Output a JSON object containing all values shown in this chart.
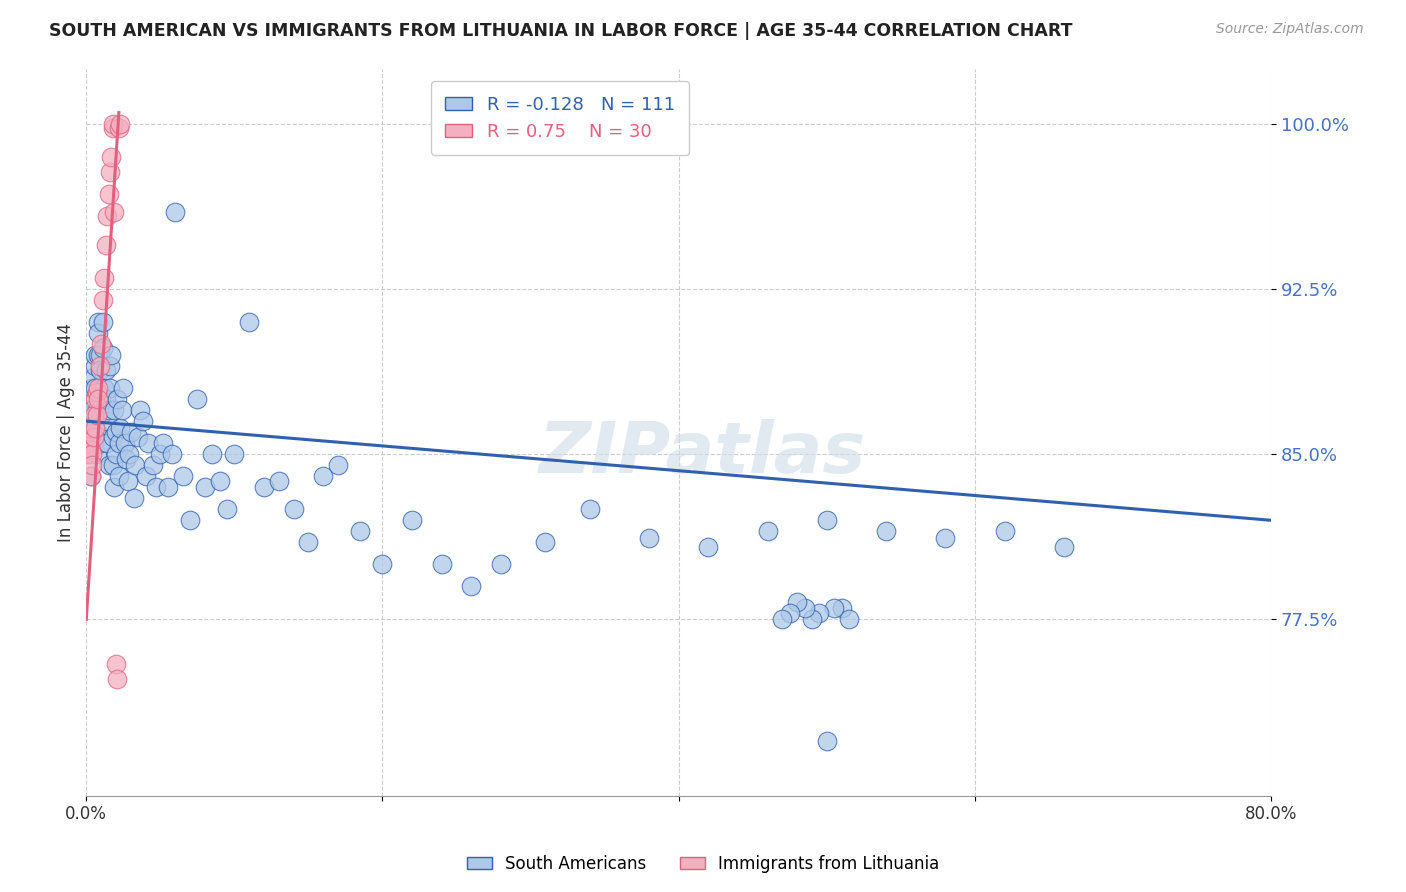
{
  "title": "SOUTH AMERICAN VS IMMIGRANTS FROM LITHUANIA IN LABOR FORCE | AGE 35-44 CORRELATION CHART",
  "source": "Source: ZipAtlas.com",
  "ylabel": "In Labor Force | Age 35-44",
  "xmin": 0.0,
  "xmax": 0.8,
  "ymin": 0.695,
  "ymax": 1.025,
  "yticks": [
    0.775,
    0.85,
    0.925,
    1.0
  ],
  "ytick_labels": [
    "77.5%",
    "85.0%",
    "92.5%",
    "100.0%"
  ],
  "xticks": [
    0.0,
    0.2,
    0.4,
    0.6,
    0.8
  ],
  "xtick_labels": [
    "0.0%",
    "",
    "",
    "",
    "80.0%"
  ],
  "blue_R": -0.128,
  "blue_N": 111,
  "pink_R": 0.75,
  "pink_N": 30,
  "blue_color": "#adc8e8",
  "pink_color": "#f4afc0",
  "blue_line_color": "#3060b0",
  "pink_line_color": "#e06080",
  "watermark": "ZIPatlas",
  "legend_label_blue": "South Americans",
  "legend_label_pink": "Immigrants from Lithuania",
  "blue_trend_x0": 0.0,
  "blue_trend_y0": 0.865,
  "blue_trend_x1": 0.8,
  "blue_trend_y1": 0.82,
  "pink_trend_x0": 0.0,
  "pink_trend_y0": 0.775,
  "pink_trend_x1": 0.022,
  "pink_trend_y1": 1.005,
  "blue_scatter_x": [
    0.001,
    0.002,
    0.002,
    0.003,
    0.003,
    0.003,
    0.004,
    0.004,
    0.004,
    0.005,
    0.005,
    0.005,
    0.006,
    0.006,
    0.006,
    0.007,
    0.007,
    0.007,
    0.008,
    0.008,
    0.008,
    0.009,
    0.009,
    0.01,
    0.01,
    0.01,
    0.011,
    0.011,
    0.012,
    0.012,
    0.013,
    0.013,
    0.014,
    0.014,
    0.015,
    0.015,
    0.016,
    0.016,
    0.017,
    0.018,
    0.018,
    0.019,
    0.019,
    0.02,
    0.02,
    0.021,
    0.022,
    0.022,
    0.023,
    0.024,
    0.025,
    0.026,
    0.027,
    0.028,
    0.029,
    0.03,
    0.032,
    0.033,
    0.035,
    0.036,
    0.038,
    0.04,
    0.042,
    0.045,
    0.047,
    0.05,
    0.052,
    0.055,
    0.058,
    0.06,
    0.065,
    0.07,
    0.075,
    0.08,
    0.085,
    0.09,
    0.095,
    0.1,
    0.11,
    0.12,
    0.13,
    0.14,
    0.15,
    0.16,
    0.17,
    0.185,
    0.2,
    0.22,
    0.24,
    0.26,
    0.28,
    0.31,
    0.34,
    0.38,
    0.42,
    0.46,
    0.5,
    0.54,
    0.58,
    0.62,
    0.66,
    0.5,
    0.51,
    0.515,
    0.505,
    0.495,
    0.49,
    0.485,
    0.48,
    0.475,
    0.47
  ],
  "blue_scatter_y": [
    0.85,
    0.86,
    0.87,
    0.855,
    0.84,
    0.865,
    0.875,
    0.88,
    0.87,
    0.86,
    0.855,
    0.885,
    0.89,
    0.895,
    0.88,
    0.87,
    0.86,
    0.85,
    0.895,
    0.91,
    0.905,
    0.895,
    0.888,
    0.875,
    0.868,
    0.855,
    0.898,
    0.91,
    0.87,
    0.88,
    0.888,
    0.875,
    0.865,
    0.855,
    0.845,
    0.87,
    0.88,
    0.89,
    0.895,
    0.858,
    0.845,
    0.87,
    0.835,
    0.85,
    0.86,
    0.875,
    0.84,
    0.855,
    0.862,
    0.87,
    0.88,
    0.855,
    0.848,
    0.838,
    0.85,
    0.86,
    0.83,
    0.845,
    0.858,
    0.87,
    0.865,
    0.84,
    0.855,
    0.845,
    0.835,
    0.85,
    0.855,
    0.835,
    0.85,
    0.96,
    0.84,
    0.82,
    0.875,
    0.835,
    0.85,
    0.838,
    0.825,
    0.85,
    0.91,
    0.835,
    0.838,
    0.825,
    0.81,
    0.84,
    0.845,
    0.815,
    0.8,
    0.82,
    0.8,
    0.79,
    0.8,
    0.81,
    0.825,
    0.812,
    0.808,
    0.815,
    0.82,
    0.815,
    0.812,
    0.815,
    0.808,
    0.72,
    0.78,
    0.775,
    0.78,
    0.778,
    0.775,
    0.78,
    0.783,
    0.778,
    0.775
  ],
  "pink_scatter_x": [
    0.001,
    0.002,
    0.003,
    0.003,
    0.004,
    0.004,
    0.005,
    0.005,
    0.006,
    0.006,
    0.007,
    0.007,
    0.008,
    0.008,
    0.009,
    0.01,
    0.011,
    0.012,
    0.013,
    0.014,
    0.015,
    0.016,
    0.017,
    0.018,
    0.018,
    0.019,
    0.02,
    0.021,
    0.022,
    0.023
  ],
  "pink_scatter_y": [
    0.855,
    0.862,
    0.84,
    0.852,
    0.85,
    0.845,
    0.858,
    0.868,
    0.862,
    0.875,
    0.878,
    0.868,
    0.88,
    0.875,
    0.89,
    0.9,
    0.92,
    0.93,
    0.945,
    0.958,
    0.968,
    0.978,
    0.985,
    0.998,
    1.0,
    0.96,
    0.755,
    0.748,
    0.998,
    1.0
  ]
}
